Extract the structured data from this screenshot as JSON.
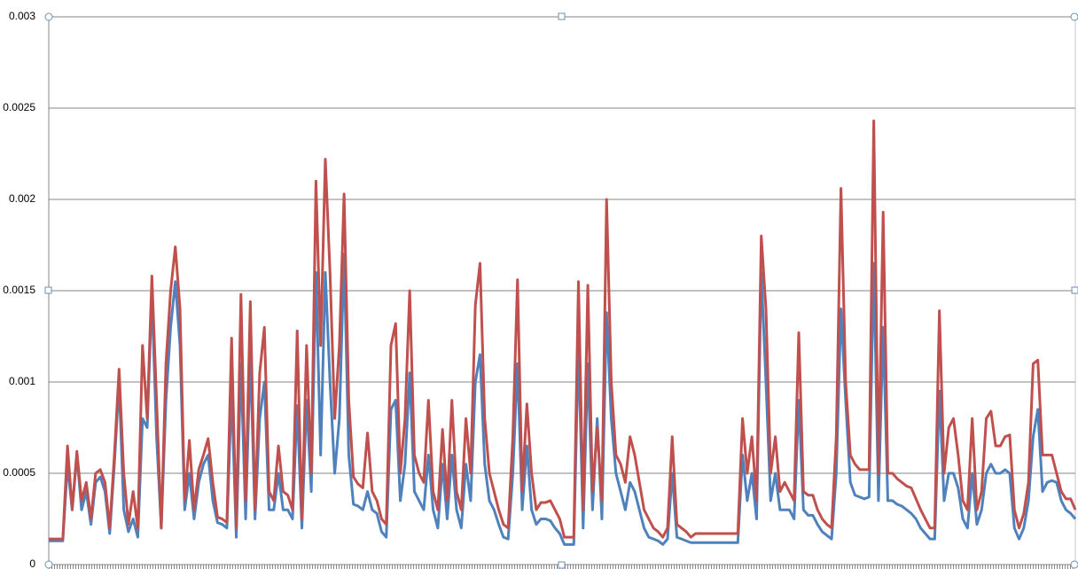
{
  "chart_data": {
    "type": "line",
    "ylim": [
      0,
      0.003
    ],
    "yticks": [
      0,
      0.0005,
      0.001,
      0.0015,
      0.002,
      0.0025,
      0.003
    ],
    "grid": true,
    "series": [
      {
        "color": "#4f81bd",
        "values": [
          0.00013,
          0.00013,
          0.00013,
          0.00013,
          0.00055,
          0.0003,
          0.0006,
          0.0003,
          0.0004,
          0.00022,
          0.00045,
          0.00048,
          0.0004,
          0.00017,
          0.00055,
          0.001,
          0.0003,
          0.00018,
          0.00025,
          0.00015,
          0.0008,
          0.00075,
          0.00148,
          0.0007,
          0.0002,
          0.0009,
          0.0013,
          0.00155,
          0.0012,
          0.0003,
          0.0005,
          0.00025,
          0.00045,
          0.00055,
          0.0006,
          0.00035,
          0.00023,
          0.00022,
          0.0002,
          0.00095,
          0.00015,
          0.0011,
          0.00025,
          0.00115,
          0.00025,
          0.0008,
          0.001,
          0.0003,
          0.0003,
          0.0005,
          0.0003,
          0.0003,
          0.00025,
          0.00087,
          0.0002,
          0.0009,
          0.0004,
          0.0016,
          0.0006,
          0.0016,
          0.001,
          0.0005,
          0.0008,
          0.0017,
          0.0006,
          0.00033,
          0.00032,
          0.0003,
          0.0004,
          0.0003,
          0.00028,
          0.00018,
          0.00015,
          0.00085,
          0.0009,
          0.00035,
          0.00055,
          0.00105,
          0.0004,
          0.00035,
          0.0003,
          0.0006,
          0.0003,
          0.0002,
          0.00055,
          0.00025,
          0.0006,
          0.0003,
          0.0002,
          0.00055,
          0.00035,
          0.001,
          0.00115,
          0.00055,
          0.00035,
          0.0003,
          0.00022,
          0.00015,
          0.00014,
          0.0005,
          0.0011,
          0.0003,
          0.00065,
          0.0003,
          0.00022,
          0.00025,
          0.00025,
          0.00024,
          0.0002,
          0.00017,
          0.00011,
          0.00011,
          0.00011,
          0.0012,
          0.0002,
          0.0011,
          0.0003,
          0.0008,
          0.00025,
          0.00138,
          0.0008,
          0.0005,
          0.0004,
          0.0003,
          0.00045,
          0.0004,
          0.0003,
          0.0002,
          0.00015,
          0.00014,
          0.00013,
          0.00011,
          0.00014,
          0.0005,
          0.00015,
          0.00014,
          0.00013,
          0.00012,
          0.00012,
          0.00012,
          0.00012,
          0.00012,
          0.00012,
          0.00012,
          0.00012,
          0.00012,
          0.00012,
          0.00012,
          0.0006,
          0.00035,
          0.0005,
          0.00025,
          0.0016,
          0.001,
          0.00035,
          0.0005,
          0.0003,
          0.0003,
          0.0003,
          0.00025,
          0.0009,
          0.0003,
          0.00027,
          0.00027,
          0.00022,
          0.00018,
          0.00016,
          0.00014,
          0.0005,
          0.0014,
          0.0009,
          0.00045,
          0.00038,
          0.00037,
          0.00036,
          0.00037,
          0.00165,
          0.00035,
          0.0013,
          0.00035,
          0.00035,
          0.00033,
          0.00032,
          0.0003,
          0.00028,
          0.00025,
          0.0002,
          0.00017,
          0.00014,
          0.00014,
          0.00095,
          0.00035,
          0.0005,
          0.0005,
          0.00042,
          0.00025,
          0.0002,
          0.0005,
          0.00022,
          0.0003,
          0.0005,
          0.00055,
          0.0005,
          0.0005,
          0.00052,
          0.0005,
          0.0002,
          0.00014,
          0.0002,
          0.00035,
          0.0007,
          0.00085,
          0.0004,
          0.00045,
          0.00046,
          0.00045,
          0.00035,
          0.0003,
          0.00028,
          0.00025
        ]
      },
      {
        "color": "#c0504d",
        "values": [
          0.00014,
          0.00014,
          0.00014,
          0.00014,
          0.00065,
          0.0003,
          0.00062,
          0.00035,
          0.00045,
          0.00025,
          0.0005,
          0.00052,
          0.00045,
          0.0002,
          0.0006,
          0.00107,
          0.0005,
          0.00022,
          0.0004,
          0.0002,
          0.0012,
          0.0008,
          0.00158,
          0.0009,
          0.0002,
          0.0011,
          0.0015,
          0.00174,
          0.0014,
          0.00035,
          0.00068,
          0.0003,
          0.00052,
          0.0006,
          0.00069,
          0.00045,
          0.00026,
          0.00025,
          0.00023,
          0.00124,
          0.0002,
          0.00148,
          0.00035,
          0.00144,
          0.0003,
          0.00105,
          0.0013,
          0.0004,
          0.00035,
          0.00065,
          0.0004,
          0.00038,
          0.0003,
          0.00128,
          0.00025,
          0.0012,
          0.0005,
          0.0021,
          0.0012,
          0.00222,
          0.0016,
          0.0008,
          0.0012,
          0.00203,
          0.0009,
          0.00048,
          0.00044,
          0.00042,
          0.00072,
          0.0004,
          0.00035,
          0.00025,
          0.00022,
          0.0012,
          0.00132,
          0.0005,
          0.0008,
          0.0015,
          0.0006,
          0.0005,
          0.00045,
          0.0009,
          0.0004,
          0.0003,
          0.00074,
          0.00035,
          0.0009,
          0.0004,
          0.0003,
          0.0008,
          0.0005,
          0.00142,
          0.00165,
          0.0008,
          0.0005,
          0.0004,
          0.0003,
          0.00022,
          0.0002,
          0.0007,
          0.00156,
          0.0004,
          0.00088,
          0.0005,
          0.0003,
          0.00034,
          0.00034,
          0.00035,
          0.0003,
          0.00025,
          0.00015,
          0.00015,
          0.00015,
          0.00155,
          0.0003,
          0.00153,
          0.0004,
          0.00075,
          0.00035,
          0.002,
          0.001,
          0.0006,
          0.00055,
          0.00045,
          0.0007,
          0.0006,
          0.00045,
          0.0003,
          0.00025,
          0.0002,
          0.00018,
          0.00015,
          0.0002,
          0.0007,
          0.00022,
          0.0002,
          0.00018,
          0.00015,
          0.00017,
          0.00017,
          0.00017,
          0.00017,
          0.00017,
          0.00017,
          0.00017,
          0.00017,
          0.00017,
          0.00017,
          0.0008,
          0.0005,
          0.0007,
          0.00035,
          0.0018,
          0.0014,
          0.0005,
          0.0007,
          0.0004,
          0.00045,
          0.0004,
          0.00035,
          0.00127,
          0.0004,
          0.00038,
          0.00038,
          0.0003,
          0.00025,
          0.00022,
          0.0002,
          0.0007,
          0.00206,
          0.001,
          0.0006,
          0.00055,
          0.00052,
          0.00052,
          0.00052,
          0.00243,
          0.0005,
          0.00193,
          0.0005,
          0.0005,
          0.00047,
          0.00045,
          0.00043,
          0.00042,
          0.00036,
          0.0003,
          0.00025,
          0.0002,
          0.0002,
          0.00139,
          0.0005,
          0.00075,
          0.0008,
          0.0006,
          0.00035,
          0.0003,
          0.0008,
          0.0003,
          0.0004,
          0.0008,
          0.00084,
          0.00065,
          0.00065,
          0.0007,
          0.00071,
          0.0003,
          0.0002,
          0.00028,
          0.00045,
          0.0011,
          0.00112,
          0.0006,
          0.0006,
          0.0006,
          0.0005,
          0.0004,
          0.00036,
          0.00036,
          0.0003
        ]
      }
    ]
  }
}
